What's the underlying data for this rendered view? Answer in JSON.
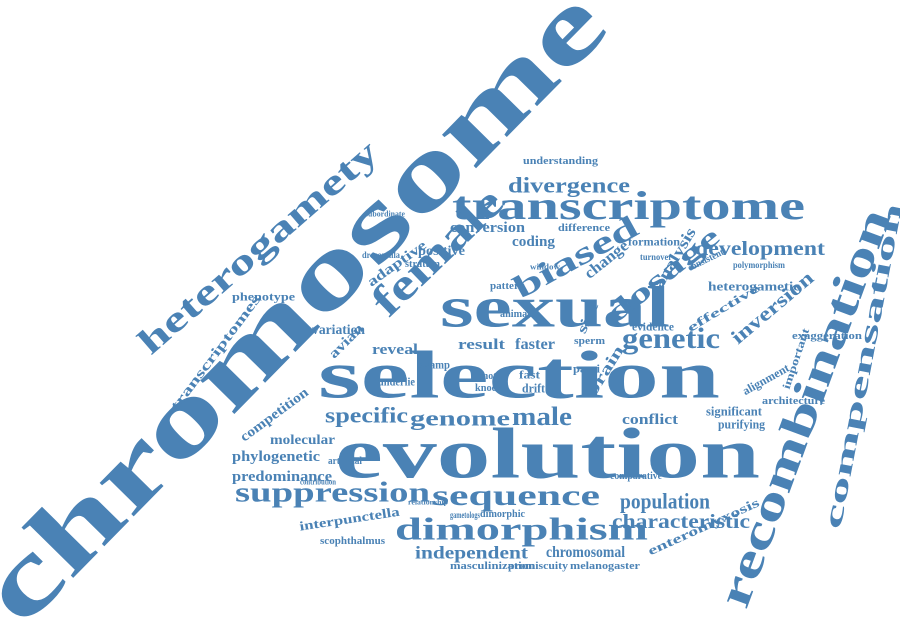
{
  "word_color": "#4a82b5",
  "words": [
    "chromosome",
    "evolution",
    "selection",
    "sexual",
    "recombination",
    "transcriptome",
    "female",
    "heterogamety",
    "biased",
    "dimorphism",
    "sequence",
    "suppression",
    "compensation",
    "divergence",
    "genetic",
    "dosage",
    "development",
    "male",
    "genome",
    "specific",
    "population",
    "characteristic",
    "independent",
    "chromosomal",
    "inversion",
    "conversion",
    "coding",
    "positive",
    "adaptive",
    "change",
    "analysis",
    "avian",
    "faster",
    "reveal",
    "result",
    "variation",
    "competition",
    "phylogenetic",
    "predominance",
    "molecular",
    "transcriptomes",
    "phenotype",
    "interpunctella",
    "scophthalmus",
    "masculinization",
    "promiscuity",
    "melanogaster",
    "enteromyxosis",
    "heterogametic",
    "conflict",
    "significant",
    "purifying",
    "alignment",
    "important",
    "exaggeration",
    "architecture",
    "brain",
    "size",
    "evidence",
    "effective",
    "formation",
    "consistent",
    "polymorphism",
    "understanding",
    "difference",
    "stratum",
    "drosophila",
    "subordinate",
    "swamp",
    "animal",
    "pattern",
    "underlie",
    "moth",
    "knock",
    "fast",
    "drift",
    "pami",
    "sperm",
    "comparative",
    "dimorphic",
    "gametologs",
    "artificial",
    "contribution",
    "turnover",
    "window",
    "relationship"
  ]
}
